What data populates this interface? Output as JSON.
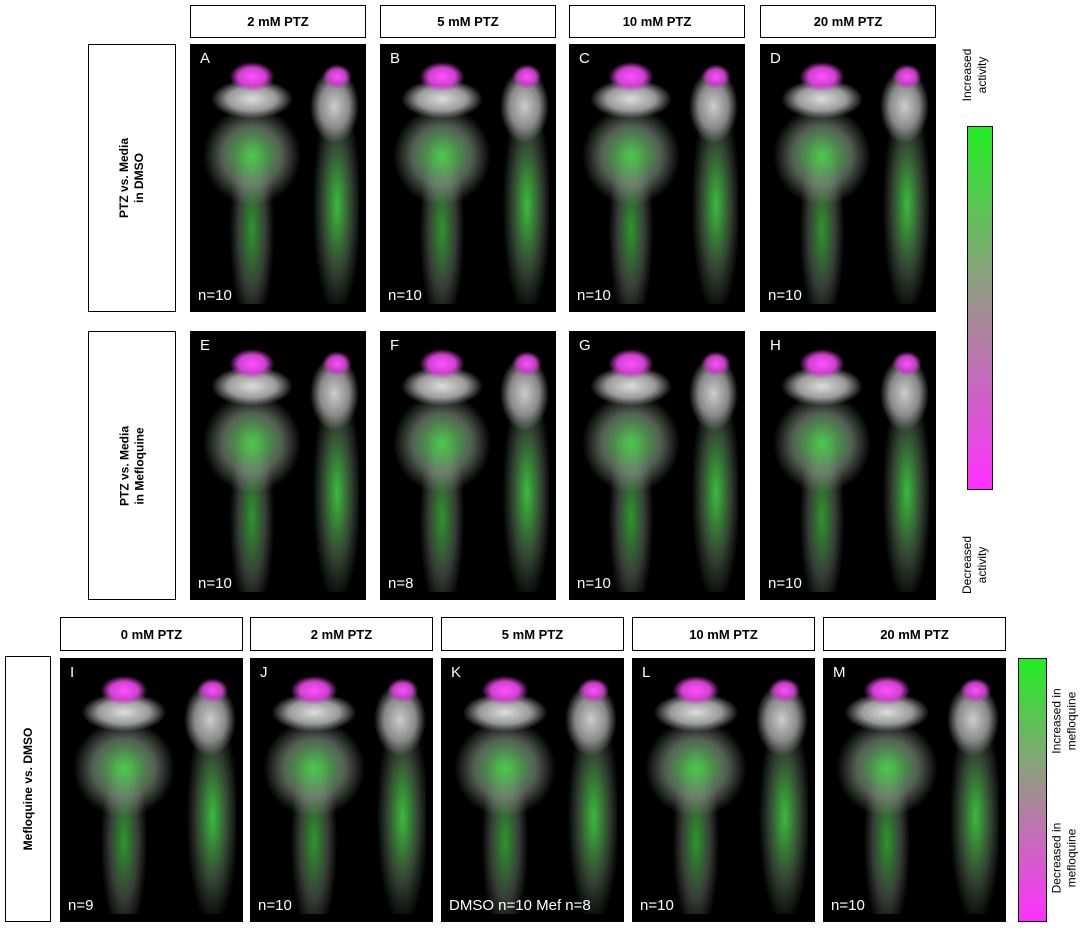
{
  "top": {
    "columns": [
      "2 mM PTZ",
      "5 mM PTZ",
      "10 mM PTZ",
      "20 mM PTZ"
    ],
    "rows": [
      {
        "label": [
          "PTZ vs. Media",
          "in DMSO"
        ],
        "panels": [
          {
            "letter": "A",
            "n": "n=10"
          },
          {
            "letter": "B",
            "n": "n=10"
          },
          {
            "letter": "C",
            "n": "n=10"
          },
          {
            "letter": "D",
            "n": "n=10"
          }
        ]
      },
      {
        "label": [
          "PTZ vs. Media",
          "in Mefloquine"
        ],
        "panels": [
          {
            "letter": "E",
            "n": "n=10"
          },
          {
            "letter": "F",
            "n": "n=8"
          },
          {
            "letter": "G",
            "n": "n=10"
          },
          {
            "letter": "H",
            "n": "n=10"
          }
        ]
      }
    ],
    "colorbar": {
      "top": [
        "Increased",
        "activity"
      ],
      "bottom": [
        "Decreased",
        "activity"
      ]
    }
  },
  "bottom": {
    "columns": [
      "0 mM PTZ",
      "2 mM PTZ",
      "5 mM PTZ",
      "10 mM PTZ",
      "20 mM PTZ"
    ],
    "row": {
      "label": [
        "Mefloquine vs. DMSO"
      ],
      "panels": [
        {
          "letter": "I",
          "n": "n=9"
        },
        {
          "letter": "J",
          "n": "n=10"
        },
        {
          "letter": "K",
          "n": "DMSO n=10 Mef n=8"
        },
        {
          "letter": "L",
          "n": "n=10"
        },
        {
          "letter": "M",
          "n": "n=10"
        }
      ]
    },
    "colorbar": {
      "top": [
        "Increased in",
        "mefloquine"
      ],
      "bottom": [
        "Decreased in",
        "mefloquine"
      ]
    }
  }
}
